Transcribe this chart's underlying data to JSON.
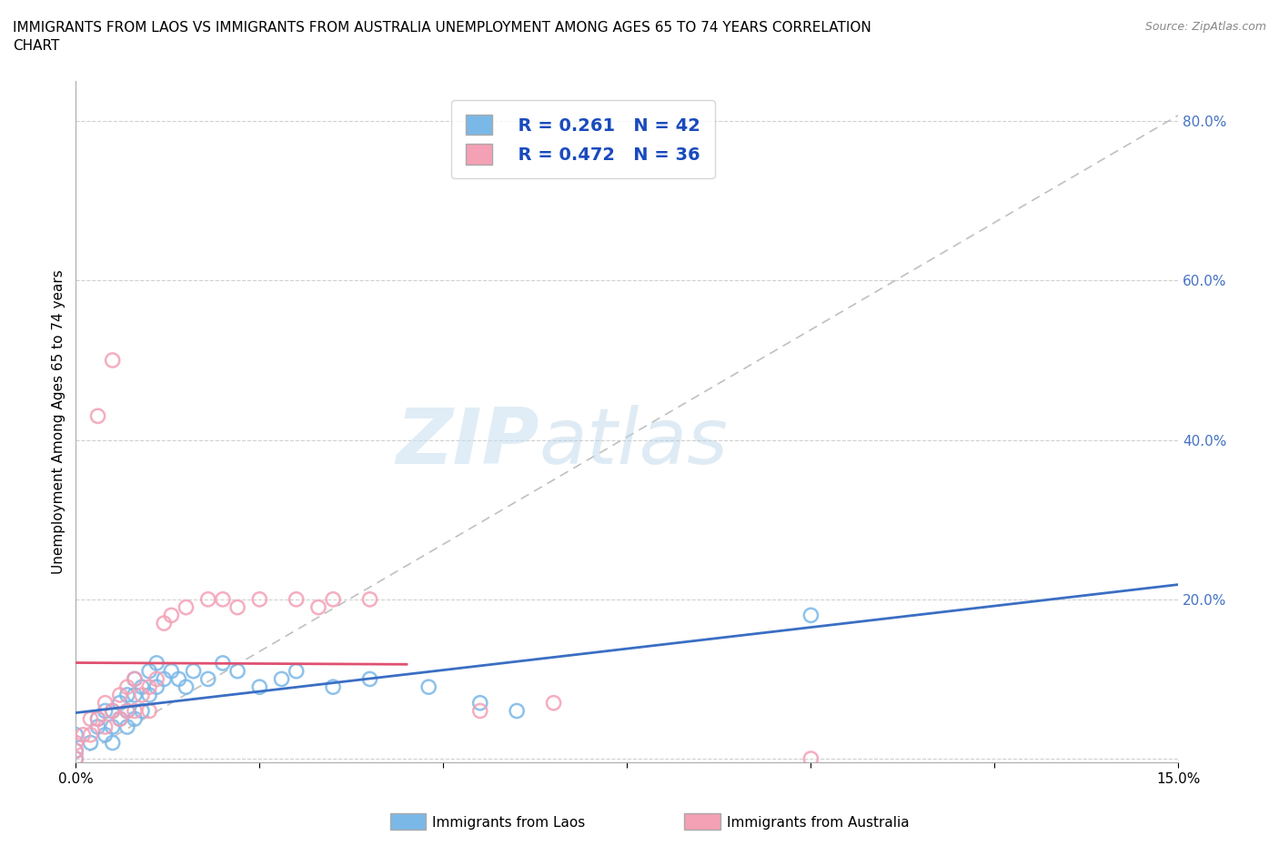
{
  "title": "IMMIGRANTS FROM LAOS VS IMMIGRANTS FROM AUSTRALIA UNEMPLOYMENT AMONG AGES 65 TO 74 YEARS CORRELATION\nCHART",
  "source_text": "Source: ZipAtlas.com",
  "ylabel_label": "Unemployment Among Ages 65 to 74 years",
  "xmin": 0.0,
  "xmax": 0.15,
  "ymin": -0.005,
  "ymax": 0.85,
  "laos_color": "#7ab8e8",
  "australia_color": "#f4a0b5",
  "laos_line_color": "#3a6ec4",
  "australia_line_color": "#e05070",
  "diag_line_color": "#c0c0c0",
  "laos_R": 0.261,
  "laos_N": 42,
  "australia_R": 0.472,
  "australia_N": 36,
  "laos_scatter_x": [
    0.0,
    0.0,
    0.0,
    0.002,
    0.003,
    0.003,
    0.004,
    0.004,
    0.005,
    0.005,
    0.005,
    0.006,
    0.006,
    0.007,
    0.007,
    0.007,
    0.008,
    0.008,
    0.008,
    0.009,
    0.009,
    0.01,
    0.01,
    0.011,
    0.011,
    0.012,
    0.013,
    0.014,
    0.015,
    0.016,
    0.018,
    0.02,
    0.022,
    0.025,
    0.028,
    0.03,
    0.035,
    0.04,
    0.048,
    0.055,
    0.06,
    0.1
  ],
  "laos_scatter_y": [
    0.0,
    0.01,
    0.03,
    0.02,
    0.05,
    0.04,
    0.06,
    0.03,
    0.06,
    0.04,
    0.02,
    0.07,
    0.05,
    0.08,
    0.06,
    0.04,
    0.1,
    0.08,
    0.05,
    0.09,
    0.06,
    0.11,
    0.08,
    0.12,
    0.09,
    0.1,
    0.11,
    0.1,
    0.09,
    0.11,
    0.1,
    0.12,
    0.11,
    0.09,
    0.1,
    0.11,
    0.09,
    0.1,
    0.09,
    0.07,
    0.06,
    0.18
  ],
  "australia_scatter_x": [
    0.0,
    0.0,
    0.0,
    0.001,
    0.002,
    0.002,
    0.003,
    0.003,
    0.004,
    0.004,
    0.005,
    0.005,
    0.006,
    0.006,
    0.007,
    0.007,
    0.008,
    0.008,
    0.009,
    0.01,
    0.01,
    0.011,
    0.012,
    0.013,
    0.015,
    0.018,
    0.02,
    0.022,
    0.025,
    0.03,
    0.033,
    0.035,
    0.04,
    0.055,
    0.065,
    0.1
  ],
  "australia_scatter_y": [
    0.0,
    0.01,
    0.02,
    0.03,
    0.05,
    0.03,
    0.43,
    0.05,
    0.07,
    0.04,
    0.5,
    0.06,
    0.08,
    0.05,
    0.09,
    0.06,
    0.1,
    0.06,
    0.08,
    0.09,
    0.06,
    0.1,
    0.17,
    0.18,
    0.19,
    0.2,
    0.2,
    0.19,
    0.2,
    0.2,
    0.19,
    0.2,
    0.2,
    0.06,
    0.07,
    0.0
  ],
  "watermark_zip": "ZIP",
  "watermark_atlas": "atlas",
  "background_color": "#ffffff",
  "grid_color": "#d0d0d0"
}
